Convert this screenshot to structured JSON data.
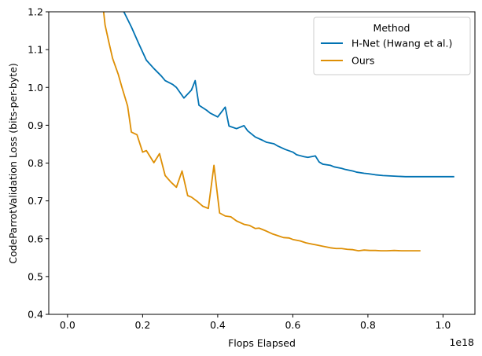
{
  "chart_data": {
    "type": "line",
    "title": "",
    "xlabel": "Flops Elapsed",
    "ylabel": "CodeParrotValidation Loss (bits-per-byte)",
    "x_offset_label": "1e18",
    "xlim": [
      -0.05,
      1.085
    ],
    "ylim": [
      0.4,
      1.2
    ],
    "xticks": [
      0.0,
      0.2,
      0.4,
      0.6,
      0.8,
      1.0
    ],
    "xtick_labels": [
      "0.0",
      "0.2",
      "0.4",
      "0.6",
      "0.8",
      "1.0"
    ],
    "yticks": [
      0.4,
      0.5,
      0.6,
      0.7,
      0.8,
      0.9,
      1.0,
      1.1,
      1.2
    ],
    "ytick_labels": [
      "0.4",
      "0.5",
      "0.6",
      "0.7",
      "0.8",
      "0.9",
      "1.0",
      "1.1",
      "1.2"
    ],
    "grid": false,
    "legend": {
      "title": "Method",
      "placement": "top-right"
    },
    "series": [
      {
        "name": "H-Net (Hwang et al.)",
        "color": "#0072b2",
        "x": [
          0.12,
          0.15,
          0.17,
          0.19,
          0.21,
          0.23,
          0.25,
          0.26,
          0.28,
          0.29,
          0.31,
          0.33,
          0.34,
          0.35,
          0.37,
          0.38,
          0.4,
          0.42,
          0.43,
          0.45,
          0.47,
          0.48,
          0.5,
          0.52,
          0.53,
          0.55,
          0.56,
          0.58,
          0.6,
          0.61,
          0.63,
          0.64,
          0.66,
          0.67,
          0.68,
          0.7,
          0.71,
          0.73,
          0.74,
          0.76,
          0.77,
          0.79,
          0.8,
          0.82,
          0.84,
          0.86,
          0.88,
          0.9,
          0.92,
          0.95,
          0.98,
          1.0,
          1.03
        ],
        "y": [
          1.21,
          1.2,
          1.16,
          1.115,
          1.072,
          1.05,
          1.03,
          1.018,
          1.008,
          1.0,
          0.972,
          0.993,
          1.018,
          0.953,
          0.94,
          0.932,
          0.922,
          0.948,
          0.898,
          0.891,
          0.899,
          0.885,
          0.869,
          0.86,
          0.855,
          0.851,
          0.845,
          0.836,
          0.829,
          0.822,
          0.817,
          0.815,
          0.819,
          0.803,
          0.797,
          0.794,
          0.79,
          0.786,
          0.783,
          0.779,
          0.776,
          0.773,
          0.772,
          0.769,
          0.767,
          0.766,
          0.765,
          0.764,
          0.764,
          0.764,
          0.764,
          0.764,
          0.764
        ]
      },
      {
        "name": "Ours",
        "color": "#de8f05",
        "x": [
          0.095,
          0.1,
          0.11,
          0.12,
          0.135,
          0.145,
          0.16,
          0.17,
          0.185,
          0.2,
          0.21,
          0.23,
          0.245,
          0.26,
          0.275,
          0.29,
          0.305,
          0.32,
          0.33,
          0.345,
          0.36,
          0.375,
          0.39,
          0.405,
          0.42,
          0.435,
          0.45,
          0.47,
          0.485,
          0.5,
          0.51,
          0.53,
          0.545,
          0.56,
          0.575,
          0.59,
          0.6,
          0.62,
          0.635,
          0.65,
          0.665,
          0.68,
          0.7,
          0.715,
          0.73,
          0.745,
          0.76,
          0.775,
          0.79,
          0.805,
          0.82,
          0.835,
          0.85,
          0.87,
          0.89,
          0.91,
          0.94
        ],
        "y": [
          1.21,
          1.165,
          1.12,
          1.077,
          1.035,
          1.0,
          0.951,
          0.882,
          0.875,
          0.829,
          0.833,
          0.801,
          0.825,
          0.767,
          0.75,
          0.736,
          0.779,
          0.714,
          0.71,
          0.699,
          0.686,
          0.68,
          0.794,
          0.668,
          0.66,
          0.658,
          0.647,
          0.638,
          0.635,
          0.627,
          0.628,
          0.62,
          0.613,
          0.608,
          0.603,
          0.602,
          0.598,
          0.594,
          0.589,
          0.586,
          0.583,
          0.58,
          0.576,
          0.574,
          0.574,
          0.572,
          0.571,
          0.568,
          0.57,
          0.569,
          0.569,
          0.568,
          0.568,
          0.569,
          0.568,
          0.568,
          0.568
        ]
      }
    ]
  }
}
